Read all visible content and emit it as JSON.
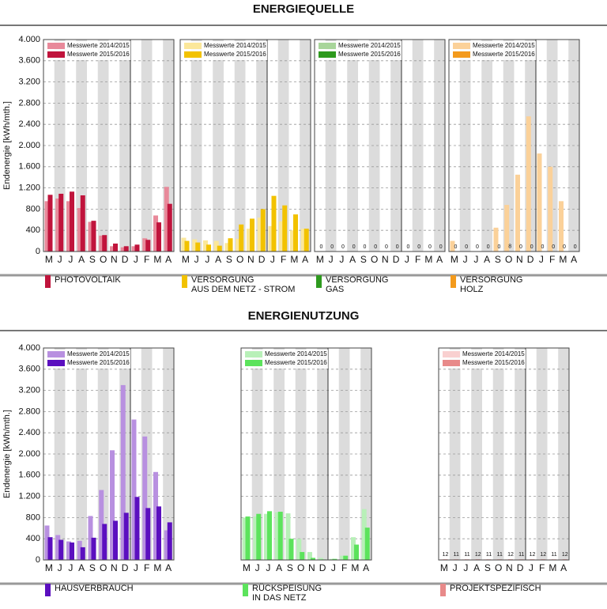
{
  "headings": [
    "ENERGIEQUELLE",
    "ENERGIENUTZUNG"
  ],
  "chart_data": [
    {
      "type": "bar",
      "ylabel": "Endenergie [kWh/mth.]",
      "ytick_labels": true,
      "legend_title": [
        "PHOTOVOLTAIK"
      ],
      "categories": [
        "M",
        "J",
        "J",
        "A",
        "S",
        "O",
        "N",
        "D",
        "J",
        "F",
        "M",
        "A"
      ],
      "series": [
        {
          "name": "Messwerte 2014/2015",
          "color": "#e8899a",
          "values": [
            950,
            1000,
            950,
            820,
            560,
            300,
            100,
            80,
            100,
            250,
            680,
            1220
          ]
        },
        {
          "name": "Messwerte 2015/2016",
          "color": "#c0143c",
          "values": [
            1070,
            1090,
            1130,
            1060,
            580,
            310,
            150,
            100,
            130,
            220,
            550,
            900
          ]
        }
      ],
      "ylim": [
        0,
        4000
      ],
      "yticks": [
        0,
        400,
        800,
        {
          "value": 1200,
          "label": "1.200"
        },
        {
          "value": 1600,
          "label": "1.600"
        },
        {
          "value": 2000,
          "label": "2.000"
        },
        {
          "value": 2400,
          "label": "2.400"
        },
        {
          "value": 2800,
          "label": "2.800"
        },
        {
          "value": 3200,
          "label": "3.200"
        },
        {
          "value": 3600,
          "label": "3.600"
        },
        {
          "value": 4000,
          "label": "4.000"
        }
      ]
    },
    {
      "type": "bar",
      "legend_title": [
        "VERSORGUNG",
        "AUS DEM NETZ - STROM"
      ],
      "categories": [
        "M",
        "J",
        "J",
        "A",
        "S",
        "O",
        "N",
        "D",
        "J",
        "F",
        "M",
        "A"
      ],
      "series": [
        {
          "name": "Messwerte 2014/2015",
          "color": "#fbe79a",
          "values": [
            260,
            230,
            210,
            200,
            160,
            240,
            430,
            640,
            480,
            570,
            400,
            430
          ]
        },
        {
          "name": "Messwerte 2015/2016",
          "color": "#f2c200",
          "values": [
            200,
            170,
            130,
            110,
            250,
            510,
            620,
            800,
            1050,
            870,
            700,
            430
          ]
        }
      ],
      "ylim": [
        0,
        4000
      ],
      "yticks": [
        0,
        400,
        800,
        1200,
        1600,
        2000,
        2400,
        2800,
        3200,
        3600,
        4000
      ]
    },
    {
      "type": "bar",
      "legend_title": [
        "VERSORGUNG",
        "GAS"
      ],
      "categories": [
        "M",
        "J",
        "J",
        "A",
        "S",
        "O",
        "N",
        "D",
        "J",
        "F",
        "M",
        "A"
      ],
      "series": [
        {
          "name": "Messwerte 2014/2015",
          "color": "#a8d59a",
          "values": [
            0,
            0,
            0,
            0,
            0,
            0,
            0,
            0,
            0,
            0,
            0,
            0
          ]
        },
        {
          "name": "Messwerte 2015/2016",
          "color": "#2e9a1e",
          "labels": true,
          "values": [
            0,
            0,
            0,
            0,
            0,
            0,
            0,
            0,
            0,
            0,
            0,
            0
          ]
        }
      ],
      "ylim": [
        0,
        4000
      ],
      "yticks": [
        0,
        400,
        800,
        1200,
        1600,
        2000,
        2400,
        2800,
        3200,
        3600,
        4000
      ]
    },
    {
      "type": "bar",
      "legend_title": [
        "VERSORGUNG",
        "HOLZ"
      ],
      "categories": [
        "M",
        "J",
        "J",
        "A",
        "S",
        "O",
        "N",
        "D",
        "J",
        "F",
        "M",
        "A"
      ],
      "series": [
        {
          "name": "Messwerte 2014/2015",
          "color": "#fbd199",
          "values": [
            200,
            0,
            0,
            0,
            450,
            880,
            1450,
            2550,
            1850,
            1600,
            950,
            0
          ]
        },
        {
          "name": "Messwerte 2015/2016",
          "color": "#f39a1c",
          "labels": true,
          "values": [
            0,
            0,
            0,
            0,
            0,
            8,
            0,
            0,
            0,
            0,
            0,
            0
          ]
        }
      ],
      "ylim": [
        0,
        4000
      ],
      "yticks": [
        0,
        400,
        800,
        1200,
        1600,
        2000,
        2400,
        2800,
        3200,
        3600,
        4000
      ]
    },
    {
      "type": "bar",
      "ylabel": "Endenergie [kWh/mth.]",
      "ytick_labels": true,
      "legend_title": [
        "HAUSVERBRAUCH"
      ],
      "categories": [
        "M",
        "J",
        "J",
        "A",
        "S",
        "O",
        "N",
        "D",
        "J",
        "F",
        "M",
        "A"
      ],
      "series": [
        {
          "name": "Messwerte 2014/2015",
          "color": "#b890e0",
          "values": [
            650,
            470,
            350,
            360,
            830,
            1320,
            2070,
            3300,
            2650,
            2330,
            1660,
            560
          ]
        },
        {
          "name": "Messwerte 2015/2016",
          "color": "#5b0fbf",
          "values": [
            430,
            380,
            330,
            240,
            420,
            680,
            740,
            890,
            1190,
            980,
            1010,
            710
          ]
        }
      ],
      "ylim": [
        0,
        4000
      ],
      "yticks": [
        0,
        400,
        800,
        {
          "value": 1200,
          "label": "1.200"
        },
        {
          "value": 1600,
          "label": "1.600"
        },
        {
          "value": 2000,
          "label": "2.000"
        },
        {
          "value": 2400,
          "label": "2.400"
        },
        {
          "value": 2800,
          "label": "2.800"
        },
        {
          "value": 3200,
          "label": "3.200"
        },
        {
          "value": 3600,
          "label": "3.600"
        },
        {
          "value": 4000,
          "label": "4.000"
        }
      ]
    },
    {
      "type": "bar",
      "legend_title": [
        "RÜCKSPEISUNG",
        "IN DAS NETZ"
      ],
      "categories": [
        "M",
        "J",
        "J",
        "A",
        "S",
        "O",
        "N",
        "D",
        "J",
        "F",
        "M",
        "A"
      ],
      "series": [
        {
          "name": "Messwerte 2014/2015",
          "color": "#b8f0b8",
          "values": [
            800,
            820,
            870,
            900,
            880,
            400,
            150,
            40,
            20,
            80,
            430,
            960
          ]
        },
        {
          "name": "Messwerte 2015/2016",
          "color": "#5ce35c",
          "values": [
            820,
            870,
            920,
            910,
            400,
            150,
            40,
            10,
            20,
            80,
            290,
            610
          ]
        }
      ],
      "ylim": [
        0,
        4000
      ],
      "yticks": [
        0,
        400,
        800,
        1200,
        1600,
        2000,
        2400,
        2800,
        3200,
        3600,
        4000
      ]
    },
    {
      "type": "bar",
      "legend_title": [
        "PROJEKTSPEZIFISCH"
      ],
      "categories": [
        "M",
        "J",
        "J",
        "A",
        "S",
        "O",
        "N",
        "D",
        "J",
        "F",
        "M",
        "A"
      ],
      "series": [
        {
          "name": "Messwerte 2014/2015",
          "color": "#f9d0d0",
          "values": [
            11,
            11,
            11,
            11,
            11,
            11,
            11,
            11,
            11,
            11,
            11,
            11
          ]
        },
        {
          "name": "Messwerte 2015/2016",
          "color": "#e88a8a",
          "labels": true,
          "values": [
            12,
            11,
            11,
            12,
            11,
            11,
            12,
            11,
            12,
            12,
            11,
            12
          ]
        }
      ],
      "ylim": [
        0,
        4000
      ],
      "yticks": [
        0,
        400,
        800,
        1200,
        1600,
        2000,
        2400,
        2800,
        3200,
        3600,
        4000
      ]
    }
  ]
}
